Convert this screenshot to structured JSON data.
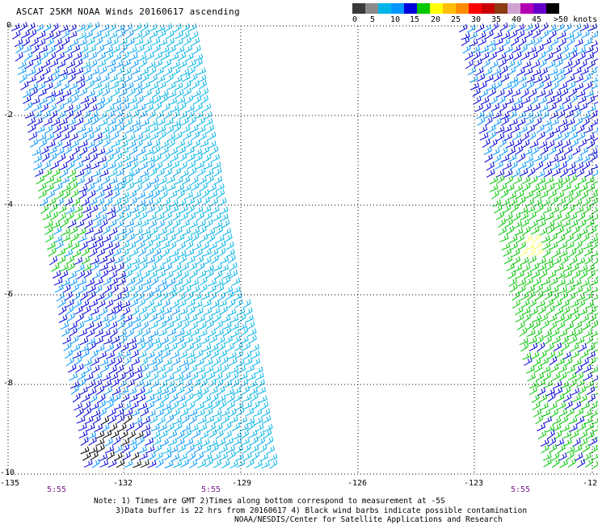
{
  "title": "ASCAT 25KM NOAA Winds 20160617 ascending",
  "legend": {
    "labels": [
      "0",
      "5",
      "10",
      "15",
      "20",
      "25",
      "30",
      "35",
      "40",
      "45",
      ">50 knots"
    ],
    "colors": [
      "#3a3a3a",
      "#8a8a8a",
      "#00b4e8",
      "#0096ff",
      "#0000dc",
      "#00c800",
      "#ffff00",
      "#ffbe00",
      "#ff8c00",
      "#ff0000",
      "#c80000",
      "#8b3c14",
      "#d0a0d0",
      "#b400b4",
      "#6400c8",
      "#000000"
    ]
  },
  "barb_colors": [
    "#0000dc",
    "#0096ff",
    "#00b4e8",
    "#00c800",
    "#000000",
    "#ffff66"
  ],
  "axes": {
    "y_ticks": [
      "0",
      "-2",
      "-4",
      "-6",
      "-8",
      "-10"
    ],
    "x_ticks": [
      "-135",
      "-132",
      "-129",
      "-126",
      "-123",
      "-12"
    ]
  },
  "times": [
    "5:55",
    "5:55",
    "5:55"
  ],
  "notes": [
    "Note: 1) Times are GMT 2)Times along bottom correspond to measurement at -5S",
    "3)Data buffer is 22 hrs from 20160617 4) Black wind barbs indicate possible contamination",
    "NOAA/NESDIS/Center for Satellite Applications and Research"
  ]
}
